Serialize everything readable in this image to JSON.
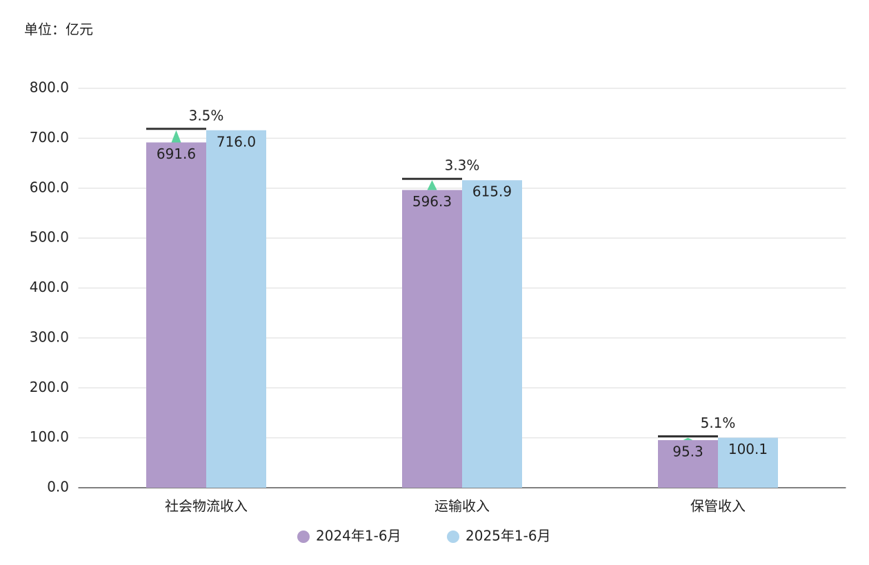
{
  "chart_data": {
    "type": "bar",
    "unit_label": "单位：亿元",
    "categories": [
      "社会物流收入",
      "运输收入",
      "保管收入"
    ],
    "series": [
      {
        "name": "2024年1-6月",
        "color": "#b09ac9",
        "values": [
          691.6,
          596.3,
          95.3
        ]
      },
      {
        "name": "2025年1-6月",
        "color": "#aed4ed",
        "values": [
          716,
          615.9,
          100.1
        ],
        "value_labels": [
          "716.0",
          "615.9",
          "100.1"
        ]
      }
    ],
    "growth": {
      "values": [
        3.5,
        3.3,
        5.1
      ],
      "value_labels": [
        "3.5%",
        "3.3%",
        "5.1%"
      ],
      "color": "#5dd39e"
    },
    "ylim": [
      0,
      800
    ],
    "yticks": [
      {
        "value": 0,
        "label": "0.0"
      },
      {
        "value": 100,
        "label": "100.0"
      },
      {
        "value": 200,
        "label": "200.0"
      },
      {
        "value": 300,
        "label": "300.0"
      },
      {
        "value": 400,
        "label": "400.0"
      },
      {
        "value": 500,
        "label": "500.0"
      },
      {
        "value": 600,
        "label": "600.0"
      },
      {
        "value": 700,
        "label": "700.0"
      },
      {
        "value": 800,
        "label": "800.0"
      }
    ],
    "grid": true,
    "legend": "bottom"
  }
}
